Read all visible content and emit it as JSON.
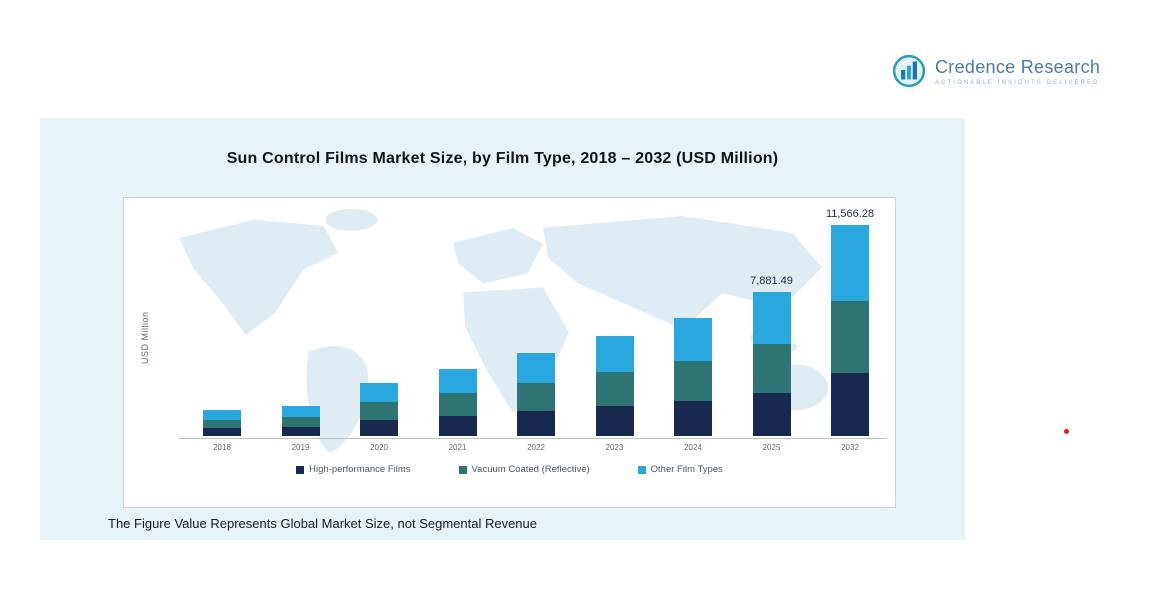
{
  "logo": {
    "name": "Credence Research",
    "tagline": "Actionable Insights Delivered"
  },
  "footnote": "The Figure Value Represents Global Market Size, not Segmental Revenue",
  "colors": {
    "panel_background": "#e8f3f8"
  },
  "chart_data": {
    "type": "bar",
    "stacked": true,
    "title": "Sun Control Films Market Size, by Film Type, 2018 – 2032 (USD Million)",
    "ylabel": "USD Million",
    "xlabel": "",
    "ylim": [
      0,
      12600
    ],
    "grid": false,
    "legend_position": "bottom",
    "categories": [
      "2018",
      "2019",
      "2020",
      "2021",
      "2022",
      "2023",
      "2024",
      "2025",
      "2032"
    ],
    "series": [
      {
        "name": "High-performance Films",
        "color": "#17294f",
        "values": [
          420,
          500,
          870,
          1100,
          1365,
          1650,
          1935,
          2364.45,
          3469.88
        ]
      },
      {
        "name": "Vacuum Coated (Reflective)",
        "color": "#2e7472",
        "values": [
          480,
          560,
          990,
          1240,
          1545,
          1870,
          2195,
          2679.71,
          3932.54
        ]
      },
      {
        "name": "Other Film Types",
        "color": "#29a8e0",
        "values": [
          500,
          590,
          1040,
          1310,
          1640,
          1980,
          2320,
          2837.33,
          4163.86
        ]
      }
    ],
    "value_labels": [
      {
        "category": "2025",
        "text": "7,881.49"
      },
      {
        "category": "2032",
        "text": "11,566.28"
      }
    ]
  }
}
